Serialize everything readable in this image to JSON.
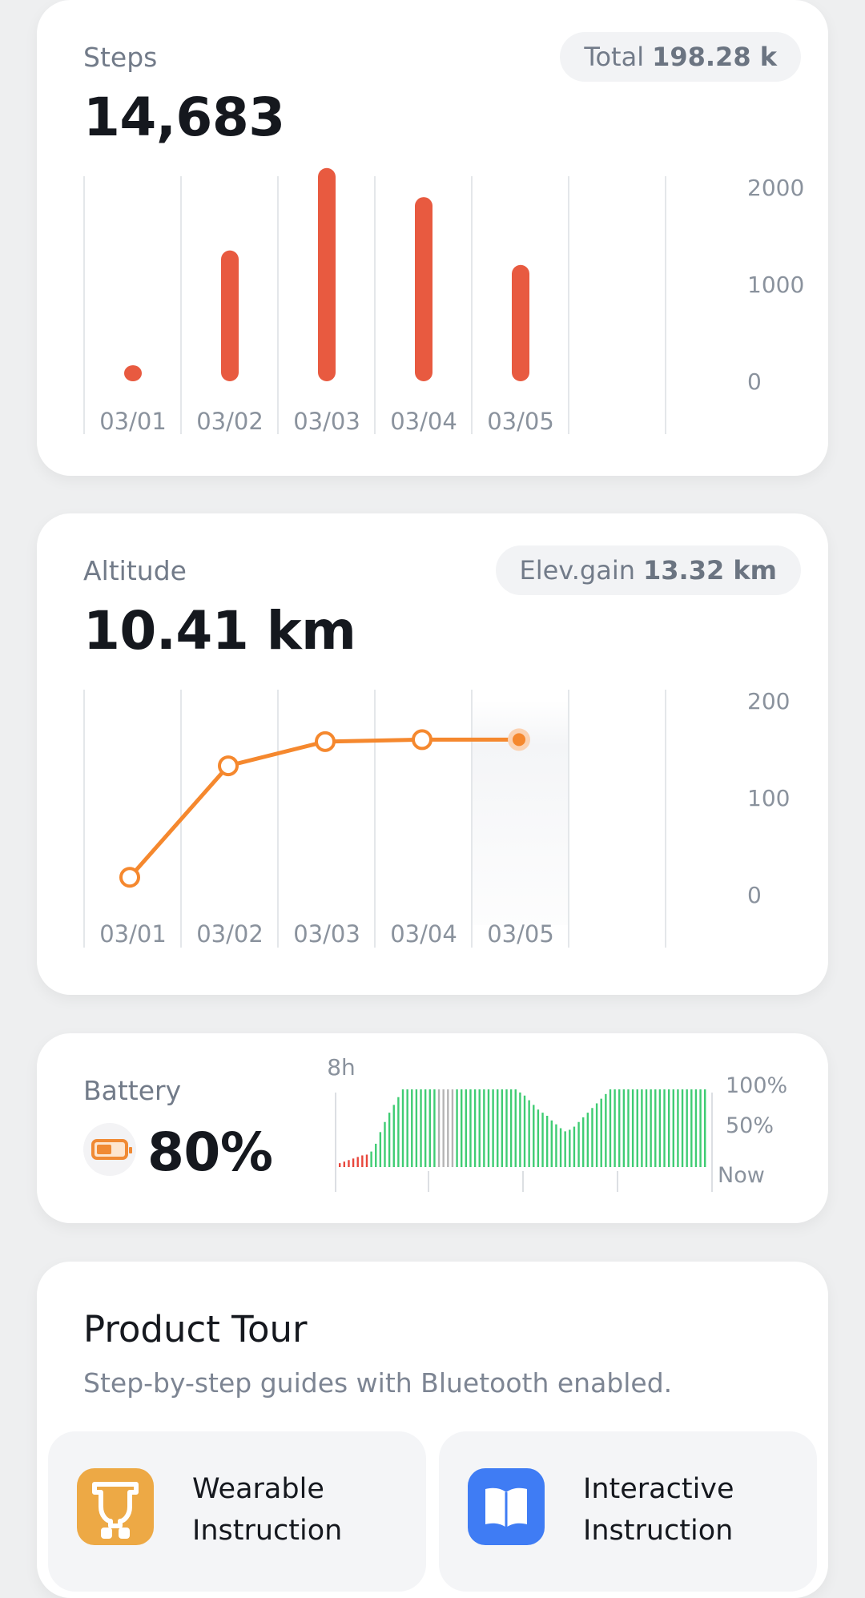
{
  "steps": {
    "label": "Steps",
    "value": "14,683",
    "total_label": "Total",
    "total_value": "198.28 k"
  },
  "altitude": {
    "label": "Altitude",
    "value": "10.41 km",
    "gain_label": "Elev.gain",
    "gain_value": "13.32 km"
  },
  "battery": {
    "label": "Battery",
    "value": "80%",
    "axis_top_left": "8h",
    "y_high": "100%",
    "y_mid": "50%",
    "x_now": "Now",
    "level": 0.8,
    "icon": "battery-icon"
  },
  "tour": {
    "title": "Product Tour",
    "subtitle": "Step-by-step guides with Bluetooth enabled.",
    "tiles": [
      {
        "label_line1": "Wearable",
        "label_line2": "Instruction",
        "icon": "wearable-icon",
        "color": "#eda945"
      },
      {
        "label_line1": "Interactive",
        "label_line2": "Instruction",
        "icon": "book-icon",
        "color": "#3f7cf4"
      }
    ]
  },
  "colors": {
    "steps_bar": "#e85a40",
    "altitude_line": "#f5882e",
    "battery_green": "#3fcc73",
    "battery_red": "#e8463c",
    "battery_gray": "#b4b4b4"
  },
  "chart_data": [
    {
      "type": "bar",
      "categories": [
        "03/01",
        "03/02",
        "03/03",
        "03/04",
        "03/05"
      ],
      "values": [
        150,
        1350,
        2200,
        1900,
        1200
      ],
      "yticks": [
        0,
        1000,
        2000
      ],
      "ylim": [
        0,
        2200
      ]
    },
    {
      "type": "line",
      "categories": [
        "03/01",
        "03/02",
        "03/03",
        "03/04",
        "03/05"
      ],
      "values": [
        18,
        133,
        158,
        160,
        160
      ],
      "yticks": [
        0,
        100,
        200
      ],
      "ylim": [
        0,
        200
      ]
    },
    {
      "type": "bar",
      "values": [
        5,
        7,
        9,
        11,
        13,
        15,
        16,
        20,
        30,
        45,
        58,
        70,
        80,
        90,
        100,
        100,
        100,
        100,
        100,
        100,
        100,
        100,
        100,
        100,
        100,
        100,
        100,
        100,
        100,
        100,
        100,
        100,
        100,
        100,
        100,
        100,
        100,
        100,
        100,
        100,
        96,
        92,
        86,
        80,
        74,
        70,
        66,
        60,
        55,
        50,
        46,
        48,
        52,
        58,
        64,
        70,
        76,
        82,
        88,
        94,
        100,
        100,
        100,
        100,
        100,
        100,
        100,
        100,
        100,
        100,
        100,
        100,
        100,
        100,
        100,
        100,
        100,
        100,
        100,
        100,
        100,
        100
      ],
      "colors_by_index": {
        "red_until": 7,
        "gray_from": 22,
        "gray_to": 25
      },
      "yticks": [
        "50%",
        "100%"
      ],
      "ylim": [
        0,
        100
      ]
    }
  ]
}
